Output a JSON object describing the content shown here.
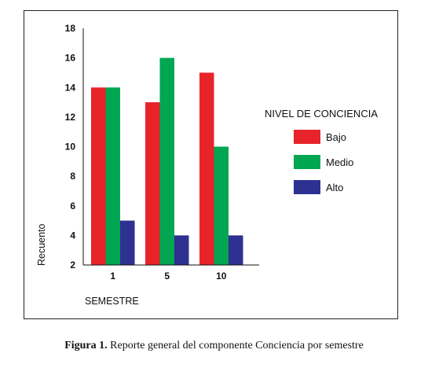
{
  "chart_data": {
    "type": "bar",
    "categories": [
      "1",
      "5",
      "10"
    ],
    "series": [
      {
        "name": "Bajo",
        "values": [
          14,
          13,
          15
        ],
        "color": "#e8232a"
      },
      {
        "name": "Medio",
        "values": [
          14,
          16,
          10
        ],
        "color": "#00a651"
      },
      {
        "name": "Alto",
        "values": [
          5,
          4,
          4
        ],
        "color": "#2e3192"
      }
    ],
    "xlabel": "SEMESTRE",
    "ylabel": "Recuento",
    "ylim": [
      2,
      18
    ],
    "yticks": [
      "2",
      "4",
      "6",
      "8",
      "10",
      "12",
      "14",
      "16",
      "18"
    ],
    "legend_title": "NIVEL DE CONCIENCIA",
    "legend_position": "right",
    "grid": false
  },
  "caption": {
    "label": "Figura 1.",
    "text": "Reporte general del componente Conciencia por semestre"
  }
}
